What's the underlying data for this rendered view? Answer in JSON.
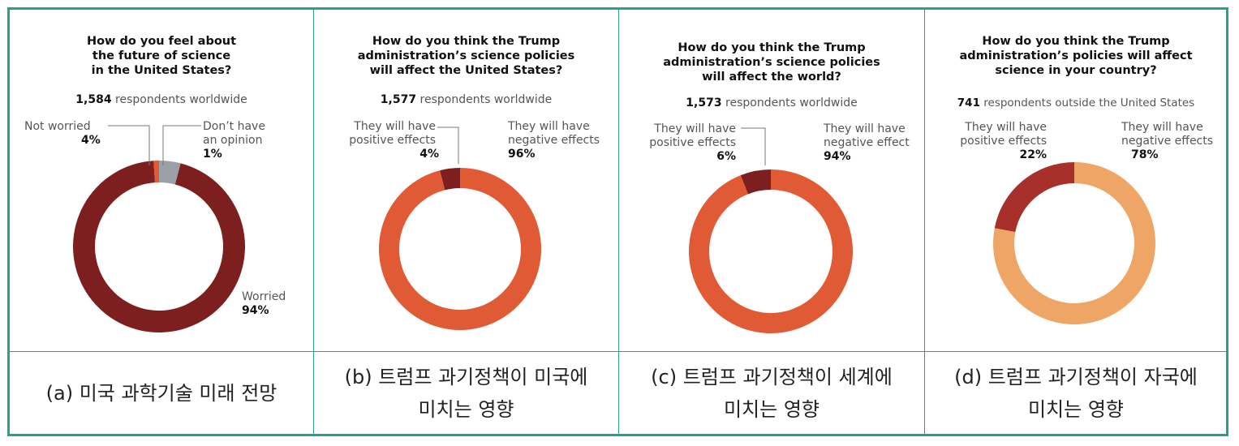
{
  "panels": [
    {
      "title_lines": [
        "How do you feel about",
        "the future of science",
        "in the United States?"
      ],
      "respondents_count": "1,584",
      "respondents_text": " respondents worldwide",
      "labels": [
        {
          "lines": [
            "Not worried"
          ],
          "pct": "4%"
        },
        {
          "lines": [
            "Don’t have",
            "an opinion"
          ],
          "pct": "1%"
        },
        {
          "lines": [
            "Worried"
          ],
          "pct": "94%"
        }
      ],
      "caption_lines": [
        "(a) 미국 과학기술 미래 전망"
      ]
    },
    {
      "title_lines": [
        "How do you think the Trump",
        "administration’s science policies",
        "will affect the United States?"
      ],
      "respondents_count": "1,577",
      "respondents_text": " respondents worldwide",
      "labels": [
        {
          "lines": [
            "They will have",
            "positive effects"
          ],
          "pct": "4%"
        },
        {
          "lines": [
            "They will have",
            "negative effects"
          ],
          "pct": "96%"
        }
      ],
      "caption_lines": [
        "(b) 트럼프 과기정책이 미국에",
        "미치는 영향"
      ]
    },
    {
      "title_lines": [
        "How do you think the Trump",
        "administration’s science policies",
        "will affect the world?"
      ],
      "respondents_count": "1,573",
      "respondents_text": " respondents worldwide",
      "labels": [
        {
          "lines": [
            "They will have",
            "positive effects"
          ],
          "pct": "6%"
        },
        {
          "lines": [
            "They will have",
            "negative effect"
          ],
          "pct": "94%"
        }
      ],
      "caption_lines": [
        "(c) 트럼프 과기정책이 세계에",
        "미치는 영향"
      ]
    },
    {
      "title_lines": [
        "How do you think the Trump",
        "administration’s policies will affect",
        "science in your country?"
      ],
      "respondents_count": "741",
      "respondents_text": " respondents outside the United States",
      "labels": [
        {
          "lines": [
            "They will have",
            "positive effects"
          ],
          "pct": "22%"
        },
        {
          "lines": [
            "They will have",
            "negative effects"
          ],
          "pct": "78%"
        }
      ],
      "caption_lines": [
        "(d) 트럼프 과기정책이 자국에",
        "미치는 영향"
      ]
    }
  ],
  "colors": {
    "border": "#2aa186",
    "main_orange": "#e05a36",
    "dark_red": "#7d1f1f",
    "grey": "#9aa0a6",
    "crimson": "#a8302a",
    "light_orange": "#eea566"
  },
  "chart_data": [
    {
      "type": "pie",
      "title": "How do you feel about the future of science in the United States?",
      "subtitle": "1,584 respondents worldwide",
      "series": [
        {
          "labels": [
            "Worried",
            "Not worried",
            "Don’t have an opinion"
          ],
          "values": [
            94,
            4,
            1
          ]
        }
      ]
    },
    {
      "type": "pie",
      "title": "How do you think the Trump administration’s science policies will affect the United States?",
      "subtitle": "1,577 respondents worldwide",
      "series": [
        {
          "labels": [
            "They will have negative effects",
            "They will have positive effects"
          ],
          "values": [
            96,
            4
          ]
        }
      ]
    },
    {
      "type": "pie",
      "title": "How do you think the Trump administration’s science policies will affect the world?",
      "subtitle": "1,573 respondents worldwide",
      "series": [
        {
          "labels": [
            "They will have negative effect",
            "They will have positive effects"
          ],
          "values": [
            94,
            6
          ]
        }
      ]
    },
    {
      "type": "pie",
      "title": "How do you think the Trump administration’s policies will affect science in your country?",
      "subtitle": "741 respondents outside the United States",
      "series": [
        {
          "labels": [
            "They will have negative effects",
            "They will have positive effects"
          ],
          "values": [
            78,
            22
          ]
        }
      ]
    }
  ]
}
